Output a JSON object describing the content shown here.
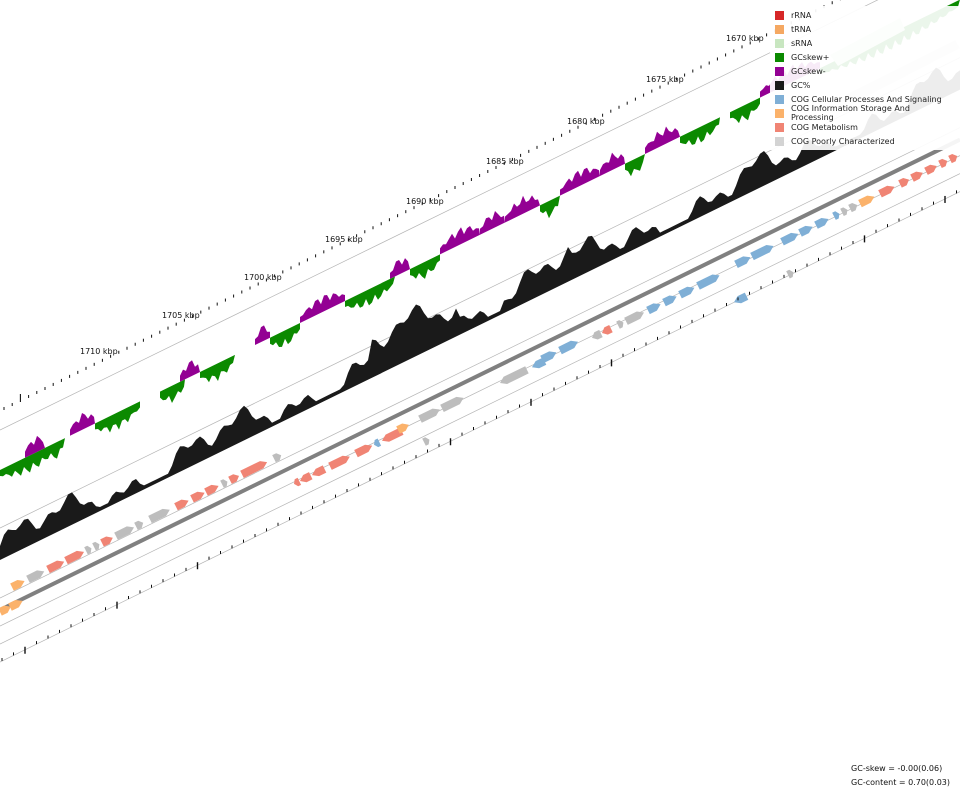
{
  "legend": [
    {
      "label": "rRNA",
      "color": "#d62728"
    },
    {
      "label": "tRNA",
      "color": "#f5a862"
    },
    {
      "label": "sRNA",
      "color": "#c8e6c0"
    },
    {
      "label": "GCskew+",
      "color": "#0b8a00"
    },
    {
      "label": "GCskew-",
      "color": "#930093"
    },
    {
      "label": "GC%",
      "color": "#1a1a1a"
    },
    {
      "label": "COG Cellular Processes And Signaling",
      "color": "#7fafd6"
    },
    {
      "label": "COG Information Storage And Processing",
      "color": "#fbb26b"
    },
    {
      "label": "COG Metabolism",
      "color": "#f08474"
    },
    {
      "label": "COG Poorly Characterized",
      "color": "#d3d3d3"
    }
  ],
  "colors": {
    "skew_pos": "#0b8a00",
    "skew_neg": "#930093",
    "gc": "#1a1a1a",
    "cog_cell": "#7fafd6",
    "cog_info": "#fbb26b",
    "cog_metab": "#f08474",
    "cog_poor": "#bdbdbd",
    "backbone": "#808080"
  },
  "axis_labels": [
    "1670 kbp",
    "1675 kbp",
    "1680 kbp",
    "1685 kbp",
    "1690 kbp",
    "1695 kbp",
    "1700 kbp",
    "1705 kbp",
    "1710 kbp"
  ],
  "stats": {
    "gc_skew": "GC-skew = -0.00(0.06)",
    "gc_content": "GC-content = 0.70(0.03)"
  }
}
